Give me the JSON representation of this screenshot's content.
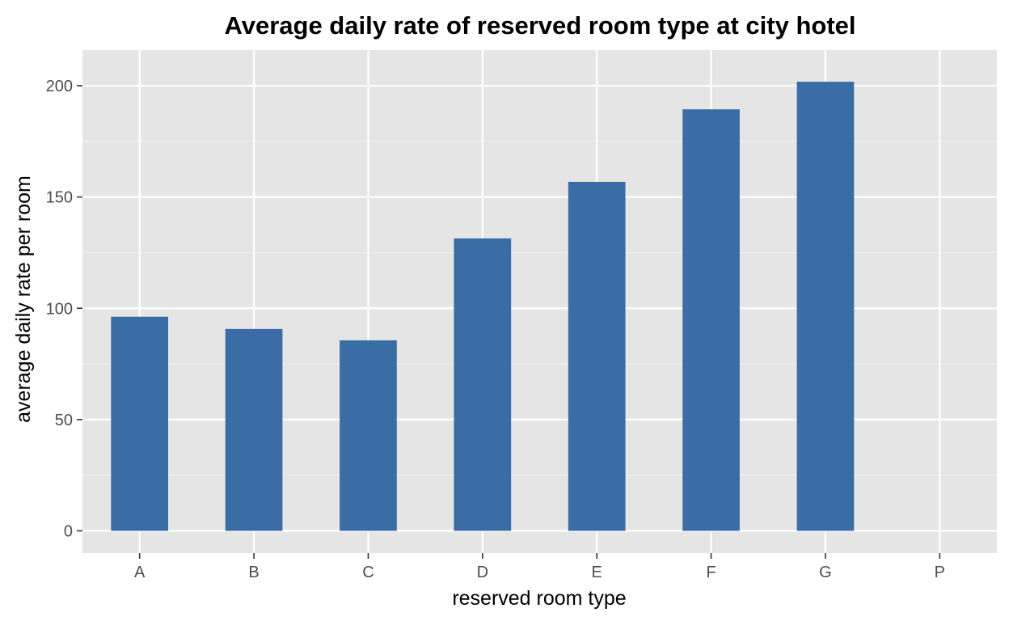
{
  "chart_data": {
    "type": "bar",
    "title": "Average daily rate of reserved room type at city hotel",
    "xlabel": "reserved room type",
    "ylabel": "average daily rate per room",
    "categories": [
      "A",
      "B",
      "C",
      "D",
      "E",
      "F",
      "G",
      "P"
    ],
    "values": [
      96.2,
      90.7,
      85.6,
      131.4,
      156.8,
      189.4,
      201.8,
      0
    ],
    "ylim": [
      -10,
      216
    ],
    "yticks": [
      0,
      50,
      100,
      150,
      200
    ],
    "ytick_labels": [
      "0",
      "50",
      "100",
      "150",
      "200"
    ],
    "grid": true,
    "legend": "none",
    "colors": {
      "bar": "#3a6ca5",
      "panel": "#e5e5e5",
      "grid_major": "#ffffff",
      "grid_minor": "#f2f2f2",
      "tick_text": "#4d4d4d",
      "tick_mark": "#333333"
    }
  }
}
